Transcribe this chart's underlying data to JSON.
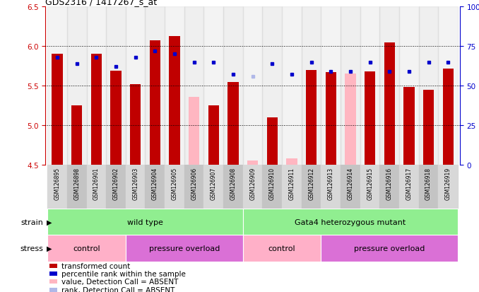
{
  "title": "GDS2316 / 1417267_s_at",
  "samples": [
    "GSM126895",
    "GSM126898",
    "GSM126901",
    "GSM126902",
    "GSM126903",
    "GSM126904",
    "GSM126905",
    "GSM126906",
    "GSM126907",
    "GSM126908",
    "GSM126909",
    "GSM126910",
    "GSM126911",
    "GSM126912",
    "GSM126913",
    "GSM126914",
    "GSM126915",
    "GSM126916",
    "GSM126917",
    "GSM126918",
    "GSM126919"
  ],
  "bar_values": [
    5.9,
    5.25,
    5.9,
    5.69,
    5.52,
    6.07,
    6.13,
    5.36,
    5.25,
    5.55,
    4.55,
    5.1,
    4.58,
    5.7,
    5.67,
    5.65,
    5.68,
    6.05,
    5.48,
    5.45,
    5.72
  ],
  "bar_absent": [
    false,
    false,
    false,
    false,
    false,
    false,
    false,
    true,
    false,
    false,
    true,
    false,
    true,
    false,
    false,
    true,
    false,
    false,
    false,
    false,
    false
  ],
  "rank_pct": [
    68,
    64,
    68,
    62,
    68,
    72,
    70,
    65,
    65,
    57,
    56,
    64,
    57,
    65,
    59,
    59,
    65,
    59,
    59,
    65,
    65
  ],
  "rank_absent": [
    false,
    false,
    false,
    false,
    false,
    false,
    false,
    false,
    false,
    false,
    true,
    false,
    false,
    false,
    false,
    false,
    false,
    false,
    false,
    false,
    false
  ],
  "ylim": [
    4.5,
    6.5
  ],
  "yticks": [
    4.5,
    5.0,
    5.5,
    6.0,
    6.5
  ],
  "right_ylim": [
    0,
    100
  ],
  "right_yticks": [
    0,
    25,
    50,
    75,
    100
  ],
  "right_yticklabels": [
    "0",
    "25",
    "50",
    "75",
    "100%"
  ],
  "bar_color_present": "#c00000",
  "bar_color_absent": "#ffb6c1",
  "rank_color_present": "#0000cc",
  "rank_color_absent": "#b0b8e8",
  "left_tick_color": "#cc0000",
  "right_tick_color": "#0000cc",
  "strain_groups": [
    {
      "label": "wild type",
      "start": 0,
      "end": 9
    },
    {
      "label": "Gata4 heterozygous mutant",
      "start": 10,
      "end": 20
    }
  ],
  "strain_color": "#90ee90",
  "stress_groups": [
    {
      "label": "control",
      "start": 0,
      "end": 3,
      "color": "#ffb0c8"
    },
    {
      "label": "pressure overload",
      "start": 4,
      "end": 9,
      "color": "#da70d6"
    },
    {
      "label": "control",
      "start": 10,
      "end": 13,
      "color": "#ffb0c8"
    },
    {
      "label": "pressure overload",
      "start": 14,
      "end": 20,
      "color": "#da70d6"
    }
  ],
  "legend_labels": [
    "transformed count",
    "percentile rank within the sample",
    "value, Detection Call = ABSENT",
    "rank, Detection Call = ABSENT"
  ],
  "legend_colors": [
    "#c00000",
    "#0000cc",
    "#ffb6c1",
    "#b0b8e8"
  ],
  "col_bg_even": "#d0d0d0",
  "col_bg_odd": "#c0c0c0"
}
